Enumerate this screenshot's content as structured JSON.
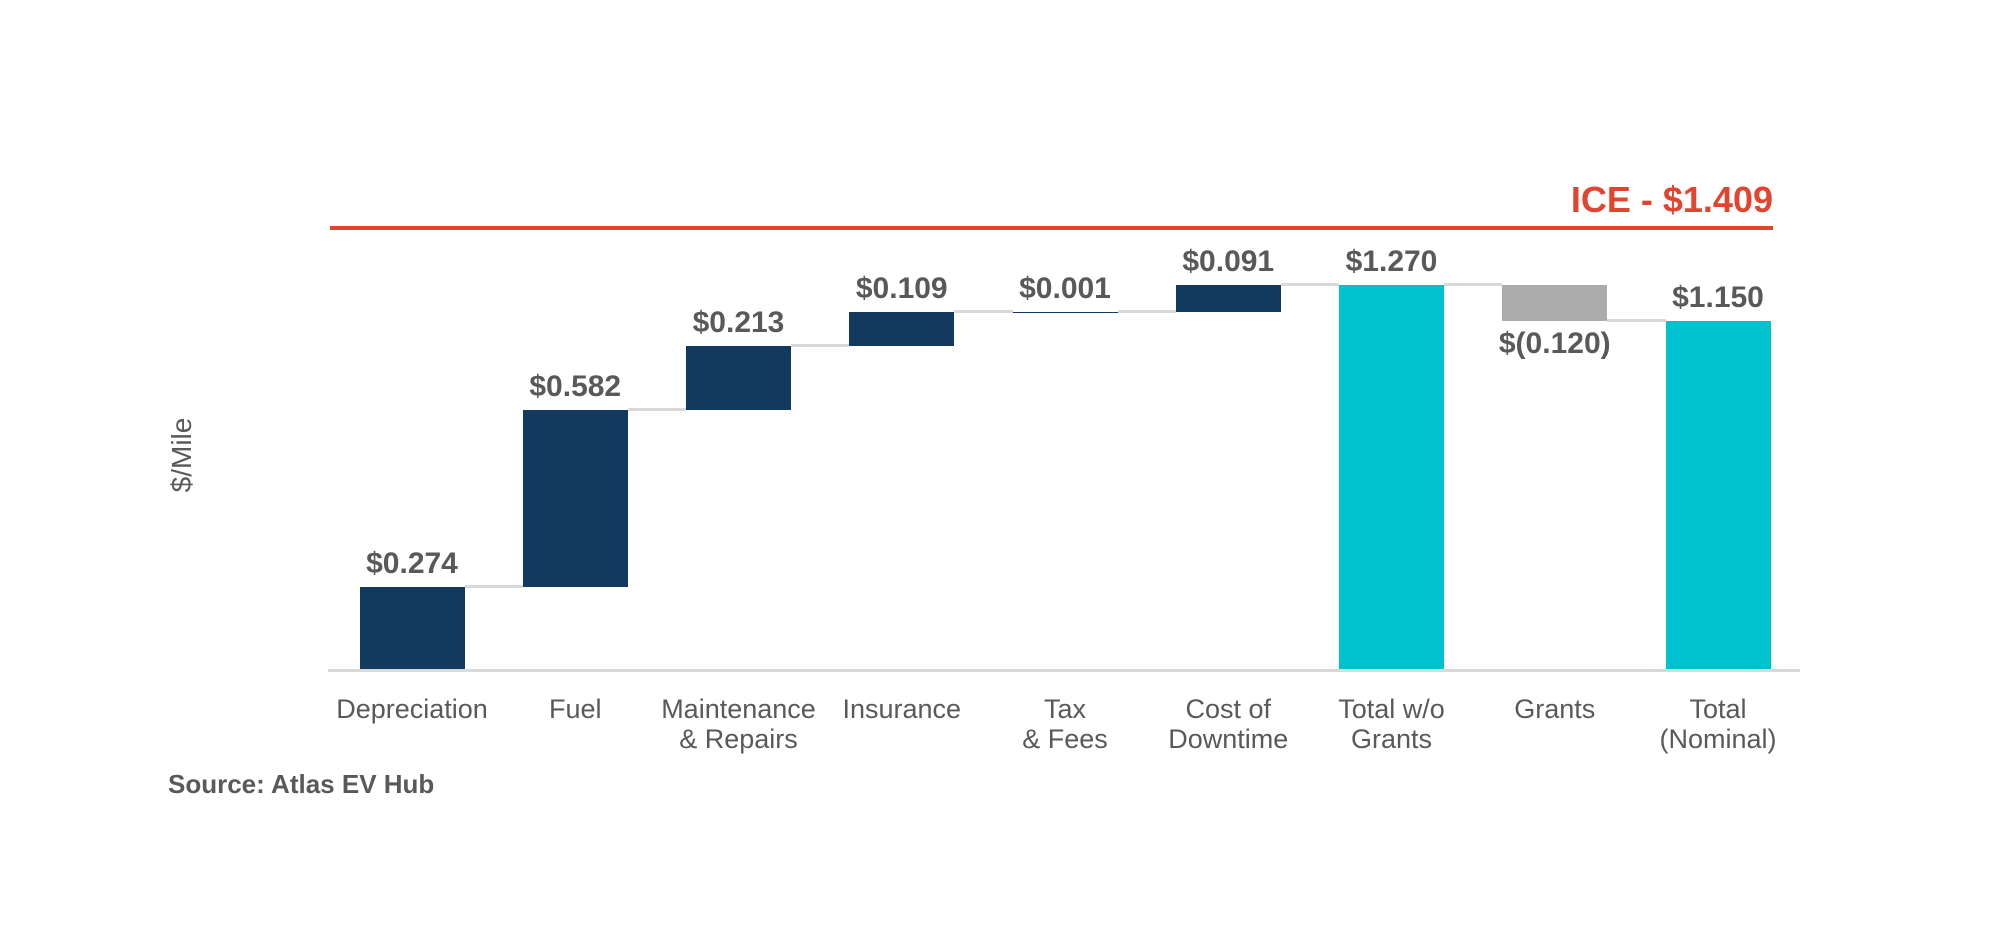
{
  "chart": {
    "y_axis_title": "$/Mile",
    "source": "Source: Atlas EV Hub",
    "benchmark_label": "ICE - $1.409"
  },
  "chart_data": {
    "type": "bar",
    "subtype": "waterfall",
    "title": "",
    "xlabel": "",
    "ylabel": "$/Mile",
    "ylim": [
      0,
      1.46
    ],
    "grid": false,
    "legend": "none",
    "source": "Source: Atlas EV Hub",
    "benchmark": {
      "label": "ICE - $1.409",
      "value": 1.409
    },
    "y_ticks": [
      {
        "label": "$1.400",
        "value": 1.4
      },
      {
        "label": "$1.200",
        "value": 1.2
      },
      {
        "label": "$1.000",
        "value": 1.0
      },
      {
        "label": "$0.800",
        "value": 0.8
      },
      {
        "label": "$0.600",
        "value": 0.6
      },
      {
        "label": "$0.400",
        "value": 0.4
      },
      {
        "label": "$0.200",
        "value": 0.2
      },
      {
        "label": "$-",
        "value": 0
      }
    ],
    "categories": [
      {
        "label": "Depreciation",
        "value": 0.274,
        "display": "$0.274",
        "kind": "increase"
      },
      {
        "label": "Fuel",
        "value": 0.582,
        "display": "$0.582",
        "kind": "increase"
      },
      {
        "label": "Maintenance\n& Repairs",
        "value": 0.213,
        "display": "$0.213",
        "kind": "increase"
      },
      {
        "label": "Insurance",
        "value": 0.109,
        "display": "$0.109",
        "kind": "increase"
      },
      {
        "label": "Tax\n& Fees",
        "value": 0.001,
        "display": "$0.001",
        "kind": "increase"
      },
      {
        "label": "Cost of\nDowntime",
        "value": 0.091,
        "display": "$0.091",
        "kind": "increase"
      },
      {
        "label": "Total w/o\nGrants",
        "value": 1.27,
        "display": "$1.270",
        "kind": "total"
      },
      {
        "label": "Grants",
        "value": -0.12,
        "display": "$(0.120)",
        "kind": "decrease"
      },
      {
        "label": "Total\n(Nominal)",
        "value": 1.15,
        "display": "$1.150",
        "kind": "total"
      }
    ],
    "colors": {
      "increase": "#123A5F",
      "decrease": "#ACACAC",
      "total": "#00C2CE",
      "benchmark": "#E0462F",
      "connector": "#D9D9D9",
      "text": "#595959"
    }
  }
}
